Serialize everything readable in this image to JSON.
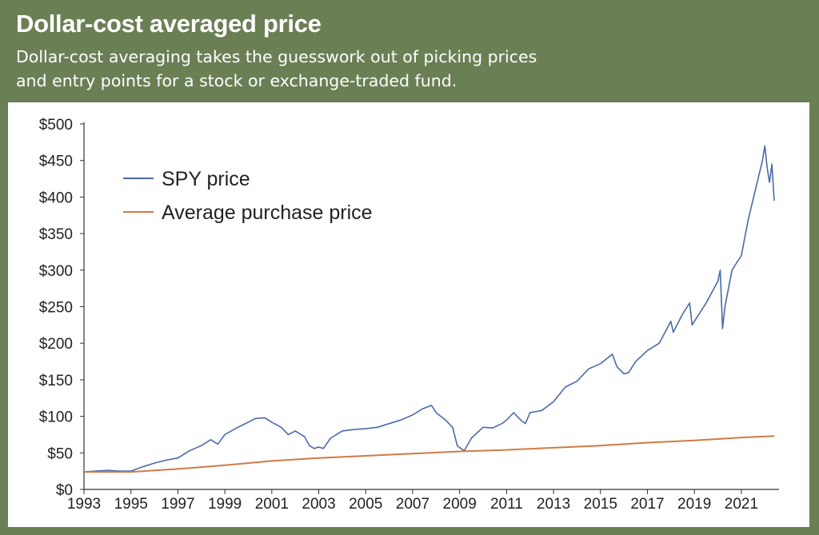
{
  "header": {
    "title": "Dollar-cost averaged price",
    "subtitle_line1": "Dollar-cost averaging takes the guesswork out of picking prices",
    "subtitle_line2": "and entry points for a stock or exchange-traded fund."
  },
  "colors": {
    "background": "#6b7f55",
    "spy": "#4a6aa8",
    "avg": "#d07a45"
  },
  "chart_data": {
    "type": "line",
    "title": "Dollar-cost averaged price",
    "xlabel": "",
    "ylabel": "",
    "xlim": [
      1993,
      2022.4
    ],
    "ylim": [
      0,
      500
    ],
    "x_ticks": [
      "1993",
      "1995",
      "1997",
      "1999",
      "2001",
      "2003",
      "2005",
      "2007",
      "2009",
      "2011",
      "2013",
      "2015",
      "2017",
      "2019",
      "2021"
    ],
    "y_ticks": [
      "$0",
      "$50",
      "$100",
      "$150",
      "$200",
      "$250",
      "$300",
      "$350",
      "$400",
      "$450",
      "$500"
    ],
    "legend_position": "top-left",
    "grid": false,
    "series": [
      {
        "name": "SPY price",
        "color": "#4a6aa8",
        "points": [
          [
            1993.0,
            24
          ],
          [
            1993.5,
            25
          ],
          [
            1994.0,
            26
          ],
          [
            1994.5,
            25
          ],
          [
            1995.0,
            25
          ],
          [
            1995.5,
            31
          ],
          [
            1996.0,
            36
          ],
          [
            1996.5,
            40
          ],
          [
            1997.0,
            43
          ],
          [
            1997.5,
            53
          ],
          [
            1998.0,
            60
          ],
          [
            1998.4,
            68
          ],
          [
            1998.7,
            62
          ],
          [
            1999.0,
            75
          ],
          [
            1999.5,
            84
          ],
          [
            2000.0,
            92
          ],
          [
            2000.3,
            97
          ],
          [
            2000.7,
            98
          ],
          [
            2001.0,
            92
          ],
          [
            2001.4,
            85
          ],
          [
            2001.7,
            75
          ],
          [
            2002.0,
            80
          ],
          [
            2002.4,
            72
          ],
          [
            2002.6,
            60
          ],
          [
            2002.8,
            56
          ],
          [
            2003.0,
            58
          ],
          [
            2003.2,
            56
          ],
          [
            2003.5,
            70
          ],
          [
            2004.0,
            80
          ],
          [
            2004.5,
            82
          ],
          [
            2005.0,
            83
          ],
          [
            2005.5,
            85
          ],
          [
            2006.0,
            90
          ],
          [
            2006.5,
            95
          ],
          [
            2007.0,
            102
          ],
          [
            2007.4,
            110
          ],
          [
            2007.8,
            115
          ],
          [
            2008.0,
            105
          ],
          [
            2008.4,
            95
          ],
          [
            2008.7,
            85
          ],
          [
            2008.9,
            60
          ],
          [
            2009.1,
            55
          ],
          [
            2009.2,
            53
          ],
          [
            2009.5,
            70
          ],
          [
            2010.0,
            85
          ],
          [
            2010.4,
            84
          ],
          [
            2010.8,
            90
          ],
          [
            2011.0,
            95
          ],
          [
            2011.3,
            105
          ],
          [
            2011.6,
            95
          ],
          [
            2011.8,
            90
          ],
          [
            2012.0,
            105
          ],
          [
            2012.5,
            108
          ],
          [
            2013.0,
            120
          ],
          [
            2013.5,
            140
          ],
          [
            2014.0,
            148
          ],
          [
            2014.5,
            165
          ],
          [
            2015.0,
            172
          ],
          [
            2015.5,
            185
          ],
          [
            2015.7,
            168
          ],
          [
            2016.0,
            158
          ],
          [
            2016.2,
            160
          ],
          [
            2016.5,
            175
          ],
          [
            2017.0,
            190
          ],
          [
            2017.5,
            200
          ],
          [
            2018.0,
            230
          ],
          [
            2018.1,
            215
          ],
          [
            2018.5,
            240
          ],
          [
            2018.8,
            255
          ],
          [
            2018.9,
            225
          ],
          [
            2019.0,
            230
          ],
          [
            2019.5,
            255
          ],
          [
            2020.0,
            285
          ],
          [
            2020.1,
            300
          ],
          [
            2020.2,
            220
          ],
          [
            2020.3,
            250
          ],
          [
            2020.6,
            300
          ],
          [
            2021.0,
            320
          ],
          [
            2021.3,
            370
          ],
          [
            2021.6,
            410
          ],
          [
            2021.9,
            450
          ],
          [
            2022.0,
            470
          ],
          [
            2022.1,
            440
          ],
          [
            2022.2,
            420
          ],
          [
            2022.3,
            445
          ],
          [
            2022.4,
            395
          ]
        ]
      },
      {
        "name": "Average purchase price",
        "color": "#d07a45",
        "points": [
          [
            1993.0,
            24
          ],
          [
            1995.0,
            24
          ],
          [
            1997.0,
            28
          ],
          [
            1999.0,
            33
          ],
          [
            2001.0,
            39
          ],
          [
            2003.0,
            43
          ],
          [
            2005.0,
            46
          ],
          [
            2007.0,
            49
          ],
          [
            2009.0,
            52
          ],
          [
            2011.0,
            54
          ],
          [
            2013.0,
            57
          ],
          [
            2015.0,
            60
          ],
          [
            2017.0,
            64
          ],
          [
            2019.0,
            67
          ],
          [
            2021.0,
            71
          ],
          [
            2022.4,
            73
          ]
        ]
      }
    ]
  }
}
